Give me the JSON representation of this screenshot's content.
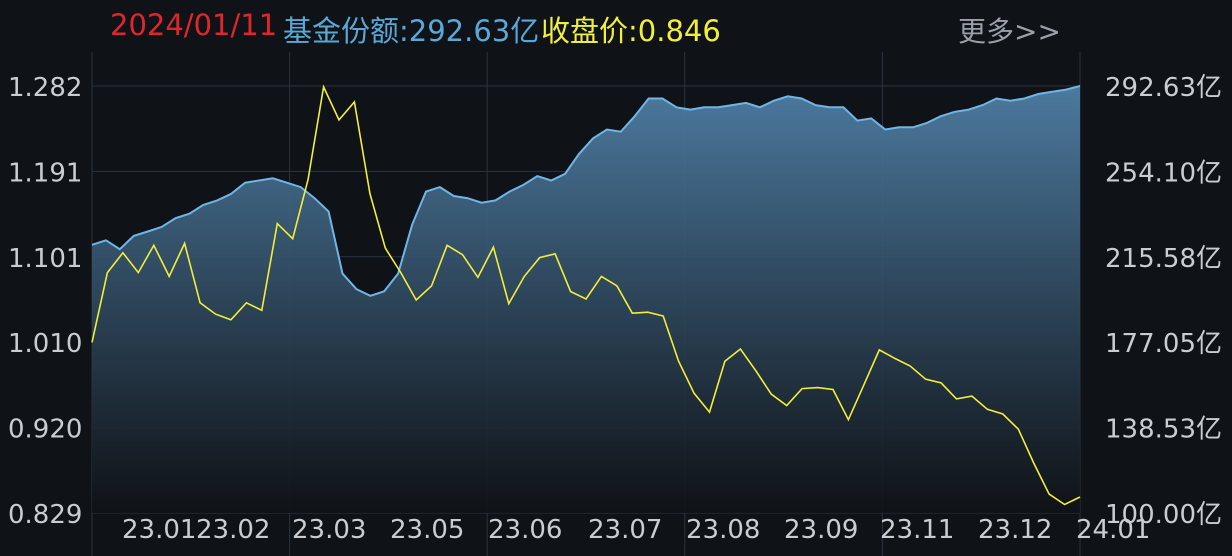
{
  "header": {
    "date": "2024/01/11",
    "fund_label": "基金份额:292.63亿",
    "close_label": "收盘价:0.846",
    "more": "更多>>"
  },
  "colors": {
    "background": "#0f1216",
    "grid": "#2a3440",
    "share_line": "#6fb6e6",
    "share_fill_top": "#4f7fa6",
    "price_line": "#f2ee3a",
    "date_text": "#e0262c",
    "fund_text": "#5aa8d8",
    "close_text": "#f3ee3a"
  },
  "chart_data": {
    "type": "line",
    "left_axis": {
      "ylim": [
        0.829,
        1.282
      ],
      "ticks": [
        "1.282",
        "1.191",
        "1.101",
        "1.010",
        "0.920",
        "0.829"
      ]
    },
    "right_axis": {
      "ylim": [
        100.0,
        292.63
      ],
      "ticks": [
        "292.63亿",
        "254.10亿",
        "215.58亿",
        "177.05亿",
        "138.53亿",
        "100.00亿"
      ]
    },
    "x_labels": [
      "23.01",
      "23.02",
      "23.03",
      "23.05",
      "23.06",
      "23.07",
      "23.08",
      "23.09",
      "23.11",
      "23.12",
      "24.01"
    ],
    "series": [
      {
        "name": "基金份额",
        "axis": "right",
        "values": [
          221,
          223,
          219,
          225,
          227,
          229,
          233,
          235,
          239,
          241,
          244,
          249,
          250,
          251,
          249,
          247,
          242,
          236,
          208,
          201,
          198,
          200,
          208,
          230,
          245,
          247,
          243,
          242,
          240,
          241,
          245,
          248,
          252,
          250,
          253,
          262,
          269,
          273,
          272,
          279,
          287,
          287,
          283,
          282,
          283,
          283,
          284,
          285,
          283,
          286,
          288,
          287,
          284,
          283,
          283,
          277,
          278,
          273,
          274,
          274,
          276,
          279,
          281,
          282,
          284,
          287,
          286,
          287,
          289,
          290,
          291,
          292.63
        ]
      },
      {
        "name": "收盘价",
        "axis": "left",
        "values": [
          1.01,
          1.084,
          1.105,
          1.084,
          1.113,
          1.08,
          1.115,
          1.052,
          1.04,
          1.034,
          1.052,
          1.044,
          1.136,
          1.12,
          1.183,
          1.281,
          1.246,
          1.265,
          1.168,
          1.11,
          1.084,
          1.055,
          1.07,
          1.113,
          1.103,
          1.079,
          1.111,
          1.051,
          1.08,
          1.1,
          1.104,
          1.064,
          1.056,
          1.08,
          1.07,
          1.041,
          1.042,
          1.038,
          0.99,
          0.956,
          0.936,
          0.99,
          1.003,
          0.98,
          0.955,
          0.943,
          0.961,
          0.962,
          0.96,
          0.928,
          0.965,
          1.002,
          0.993,
          0.985,
          0.971,
          0.967,
          0.95,
          0.953,
          0.939,
          0.934,
          0.918,
          0.882,
          0.849,
          0.838,
          0.846
        ]
      }
    ]
  }
}
